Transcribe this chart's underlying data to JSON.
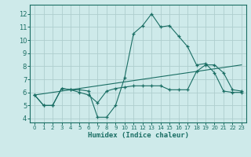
{
  "xlabel": "Humidex (Indice chaleur)",
  "xlim": [
    -0.5,
    23.5
  ],
  "ylim": [
    3.7,
    12.7
  ],
  "xticks": [
    0,
    1,
    2,
    3,
    4,
    5,
    6,
    7,
    8,
    9,
    10,
    11,
    12,
    13,
    14,
    15,
    16,
    17,
    18,
    19,
    20,
    21,
    22,
    23
  ],
  "yticks": [
    4,
    5,
    6,
    7,
    8,
    9,
    10,
    11,
    12
  ],
  "background_color": "#ceeaea",
  "grid_color": "#aecece",
  "line_color": "#1a6e64",
  "line1_x": [
    0,
    1,
    2,
    3,
    4,
    5,
    6,
    7,
    8,
    9,
    10,
    11,
    12,
    13,
    14,
    15,
    16,
    17,
    18,
    19,
    20,
    21,
    22,
    23
  ],
  "line1_y": [
    5.8,
    5.0,
    5.0,
    6.3,
    6.2,
    6.2,
    6.1,
    4.1,
    4.1,
    5.0,
    7.1,
    10.5,
    11.1,
    12.0,
    11.0,
    11.1,
    10.3,
    9.5,
    8.1,
    8.2,
    7.5,
    6.1,
    6.0,
    6.0
  ],
  "line2_x": [
    0,
    1,
    2,
    3,
    4,
    5,
    6,
    7,
    8,
    9,
    10,
    11,
    12,
    13,
    14,
    15,
    16,
    17,
    18,
    19,
    20,
    21,
    22,
    23
  ],
  "line2_y": [
    5.8,
    5.0,
    5.0,
    6.3,
    6.2,
    6.0,
    5.8,
    5.2,
    6.1,
    6.3,
    6.4,
    6.5,
    6.5,
    6.5,
    6.5,
    6.2,
    6.2,
    6.2,
    7.6,
    8.1,
    8.1,
    7.5,
    6.2,
    6.1
  ],
  "line3_x": [
    0,
    23
  ],
  "line3_y": [
    5.8,
    8.1
  ]
}
